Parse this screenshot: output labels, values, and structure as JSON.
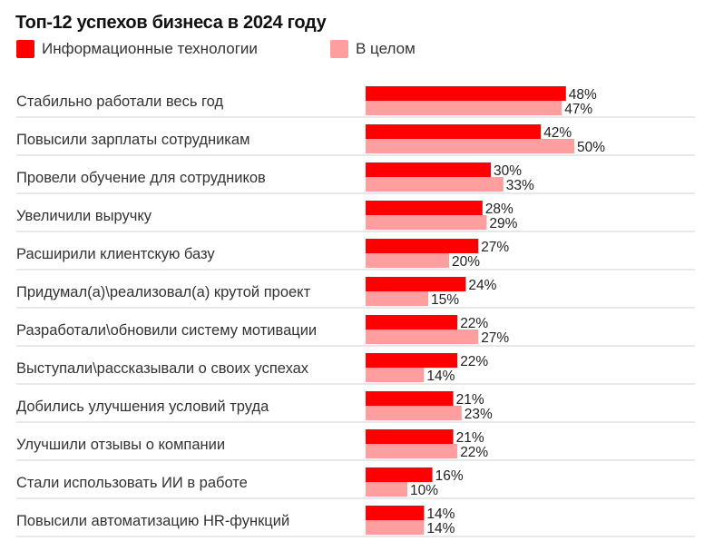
{
  "chart_data": {
    "type": "bar",
    "orientation": "horizontal",
    "title": "Топ-12 успехов бизнеса в 2024 году",
    "categories": [
      "Стабильно работали весь год",
      "Повысили зарплаты сотрудникам",
      "Провели обучение для сотрудников",
      "Увеличили выручку",
      "Расширили клиентскую базу",
      "Придумал(а)\\реализовал(а) крутой проект",
      "Разработали\\обновили систему мотивации",
      "Выступали\\рассказывали о своих успехах",
      "Добились улучшения условий труда",
      "Улучшили отзывы о компании",
      "Стали использовать ИИ в работе",
      "Повысили автоматизацию HR-функций"
    ],
    "series": [
      {
        "name": "Информационные технологии",
        "color": "#ff0000",
        "values": [
          48,
          42,
          30,
          28,
          27,
          24,
          22,
          22,
          21,
          21,
          16,
          14
        ],
        "labels": [
          "48%",
          "42%",
          "30%",
          "28%",
          "27%",
          "24%",
          "22%",
          "22%",
          "21%",
          "21%",
          "16%",
          "14%"
        ]
      },
      {
        "name": "В целом",
        "color": "#ff9e9e",
        "values": [
          47,
          50,
          33,
          29,
          20,
          15,
          27,
          14,
          23,
          22,
          10,
          14
        ],
        "labels": [
          "47%",
          "50%",
          "33%",
          "29%",
          "20%",
          "15%",
          "27%",
          "14%",
          "23%",
          "22%",
          "10%",
          "14%"
        ]
      }
    ],
    "legend_position": "top-left",
    "xlim": [
      0,
      100
    ],
    "grid": false
  }
}
